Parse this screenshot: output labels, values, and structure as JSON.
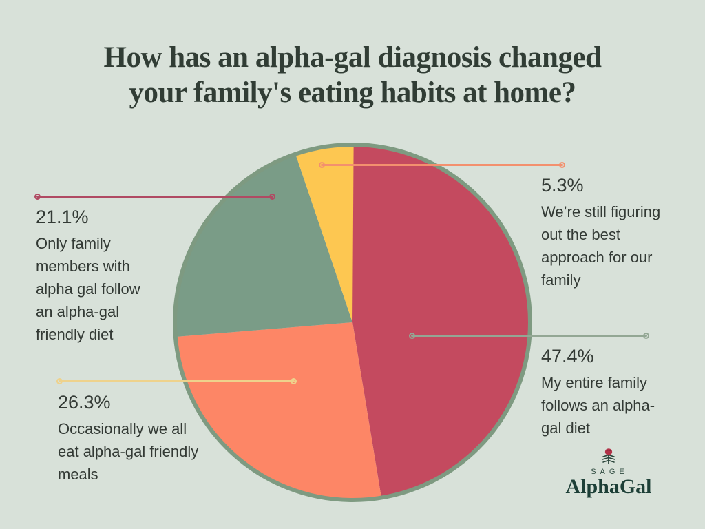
{
  "title": "How has an alpha-gal diagnosis changed\nyour family's eating habits at home?",
  "chart_data": {
    "type": "pie",
    "title": "How has an alpha-gal diagnosis changed your family's eating habits at home?",
    "start_angle_deg": -90,
    "direction": "clockwise",
    "background_color": "#d8e1d9",
    "circle_border_color": "#7e9a81",
    "legend_position": "callouts",
    "slices": [
      {
        "name": "entire-family",
        "value": 47.4,
        "percent_label": "47.4%",
        "label": "My entire family follows an alpha-gal diet",
        "color": "#c44a5f",
        "callout_line_color": "#93a794"
      },
      {
        "name": "occasionally-all",
        "value": 26.3,
        "percent_label": "26.3%",
        "label": "Occasionally we all eat alpha-gal friendly meals",
        "color": "#fd8666",
        "callout_line_color": "#eed28c"
      },
      {
        "name": "only-members-with-alpha-gal",
        "value": 21.1,
        "percent_label": "21.1%",
        "label": "Only family members with alpha gal follow an alpha-gal friendly diet",
        "color": "#7a9c87",
        "callout_line_color": "#b04a63"
      },
      {
        "name": "still-figuring-out",
        "value": 5.3,
        "percent_label": "5.3%",
        "label": "We’re still figuring out the best approach for our family",
        "color": "#fdc751",
        "callout_line_color": "#f3906e"
      }
    ]
  },
  "logo": {
    "brand_top": "SAGE",
    "brand_name": "AlphaGal",
    "brand_color": "#1d3f37",
    "tick_body_color": "#b23349",
    "tick_leg_color": "#2c463c"
  },
  "colors": {
    "background": "#d8e1d9",
    "title_text": "#313d35",
    "label_text": "#333a35"
  }
}
